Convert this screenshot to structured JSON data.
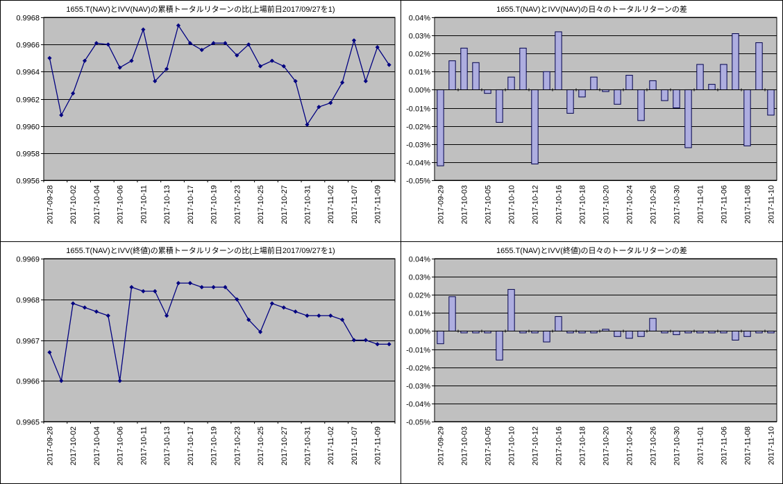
{
  "colors": {
    "plot_bg": "#C0C0C0",
    "grid": "#000000",
    "axis": "#000000",
    "line": "#000080",
    "bar_fill": "#AEAEE0",
    "bar_border": "#00004D",
    "chart_bg": "#FFFFFF"
  },
  "chart_data": [
    {
      "type": "line",
      "title": "1655.T(NAV)とIVV(NAV)の累積トータルリターンの比(上場前日2017/09/27を1)",
      "legend": "none",
      "grid": "horizontal",
      "marker": "diamond",
      "label_every": 2,
      "ylim": [
        0.9956,
        0.9968
      ],
      "ytick_step": 0.0002,
      "ytick_decimals": 4,
      "percent": false,
      "categories": [
        "2017-09-28",
        "2017-09-29",
        "2017-10-02",
        "2017-10-03",
        "2017-10-04",
        "2017-10-05",
        "2017-10-06",
        "2017-10-10",
        "2017-10-11",
        "2017-10-12",
        "2017-10-13",
        "2017-10-16",
        "2017-10-17",
        "2017-10-18",
        "2017-10-19",
        "2017-10-20",
        "2017-10-23",
        "2017-10-24",
        "2017-10-25",
        "2017-10-26",
        "2017-10-27",
        "2017-10-30",
        "2017-10-31",
        "2017-11-01",
        "2017-11-02",
        "2017-11-06",
        "2017-11-07",
        "2017-11-08",
        "2017-11-09",
        "2017-11-10"
      ],
      "values": [
        0.9965,
        0.99608,
        0.99624,
        0.99648,
        0.99661,
        0.9966,
        0.99643,
        0.99648,
        0.99671,
        0.99633,
        0.99642,
        0.99674,
        0.99661,
        0.99656,
        0.99661,
        0.99661,
        0.99652,
        0.9966,
        0.99644,
        0.99648,
        0.99644,
        0.99633,
        0.99601,
        0.99614,
        0.99617,
        0.99632,
        0.99663,
        0.99633,
        0.99658,
        0.99645
      ]
    },
    {
      "type": "bar",
      "title": "1655.T(NAV)とIVV(NAV)の日々のトータルリターンの差",
      "legend": "none",
      "grid": "horizontal",
      "label_every": 2,
      "ylim": [
        -0.05,
        0.04
      ],
      "ytick_step": 0.01,
      "ytick_decimals": 2,
      "percent": true,
      "categories": [
        "2017-09-29",
        "2017-10-02",
        "2017-10-03",
        "2017-10-04",
        "2017-10-05",
        "2017-10-06",
        "2017-10-10",
        "2017-10-11",
        "2017-10-12",
        "2017-10-13",
        "2017-10-16",
        "2017-10-17",
        "2017-10-18",
        "2017-10-19",
        "2017-10-20",
        "2017-10-23",
        "2017-10-24",
        "2017-10-25",
        "2017-10-26",
        "2017-10-27",
        "2017-10-30",
        "2017-10-31",
        "2017-11-01",
        "2017-11-02",
        "2017-11-06",
        "2017-11-07",
        "2017-11-08",
        "2017-11-09",
        "2017-11-10"
      ],
      "values": [
        -0.042,
        0.016,
        0.023,
        0.015,
        -0.002,
        -0.018,
        0.007,
        0.023,
        -0.041,
        0.01,
        0.032,
        -0.013,
        -0.004,
        0.007,
        -0.001,
        -0.008,
        0.008,
        -0.017,
        0.005,
        -0.006,
        -0.01,
        -0.032,
        0.014,
        0.003,
        0.014,
        0.031,
        -0.031,
        0.026,
        -0.014
      ]
    },
    {
      "type": "line",
      "title": "1655.T(NAV)とIVV(終値)の累積トータルリターンの比(上場前日2017/09/27を1)",
      "legend": "none",
      "grid": "horizontal",
      "marker": "diamond",
      "label_every": 2,
      "ylim": [
        0.9965,
        0.9969
      ],
      "ytick_step": 0.0001,
      "ytick_decimals": 4,
      "percent": false,
      "categories": [
        "2017-09-28",
        "2017-09-29",
        "2017-10-02",
        "2017-10-03",
        "2017-10-04",
        "2017-10-05",
        "2017-10-06",
        "2017-10-10",
        "2017-10-11",
        "2017-10-12",
        "2017-10-13",
        "2017-10-16",
        "2017-10-17",
        "2017-10-18",
        "2017-10-19",
        "2017-10-20",
        "2017-10-23",
        "2017-10-24",
        "2017-10-25",
        "2017-10-26",
        "2017-10-27",
        "2017-10-30",
        "2017-10-31",
        "2017-11-01",
        "2017-11-02",
        "2017-11-06",
        "2017-11-07",
        "2017-11-08",
        "2017-11-09",
        "2017-11-10"
      ],
      "values": [
        0.99667,
        0.9966,
        0.99679,
        0.99678,
        0.99677,
        0.99676,
        0.9966,
        0.99683,
        0.99682,
        0.99682,
        0.99676,
        0.99684,
        0.99684,
        0.99683,
        0.99683,
        0.99683,
        0.9968,
        0.99675,
        0.99672,
        0.99679,
        0.99678,
        0.99677,
        0.99676,
        0.99676,
        0.99676,
        0.99675,
        0.9967,
        0.9967,
        0.99669,
        0.99669
      ]
    },
    {
      "type": "bar",
      "title": "1655.T(NAV)とIVV(終値)の日々のトータルリターンの差",
      "legend": "none",
      "grid": "horizontal",
      "label_every": 2,
      "ylim": [
        -0.05,
        0.04
      ],
      "ytick_step": 0.01,
      "ytick_decimals": 2,
      "percent": true,
      "categories": [
        "2017-09-29",
        "2017-10-02",
        "2017-10-03",
        "2017-10-04",
        "2017-10-05",
        "2017-10-06",
        "2017-10-10",
        "2017-10-11",
        "2017-10-12",
        "2017-10-13",
        "2017-10-16",
        "2017-10-17",
        "2017-10-18",
        "2017-10-19",
        "2017-10-20",
        "2017-10-23",
        "2017-10-24",
        "2017-10-25",
        "2017-10-26",
        "2017-10-27",
        "2017-10-30",
        "2017-10-31",
        "2017-11-01",
        "2017-11-02",
        "2017-11-06",
        "2017-11-07",
        "2017-11-08",
        "2017-11-09",
        "2017-11-10"
      ],
      "values": [
        -0.007,
        0.019,
        -0.001,
        -0.001,
        -0.001,
        -0.016,
        0.023,
        -0.001,
        -0.001,
        -0.006,
        0.008,
        -0.001,
        -0.001,
        -0.001,
        0.001,
        -0.003,
        -0.004,
        -0.003,
        0.007,
        -0.001,
        -0.002,
        -0.001,
        -0.001,
        -0.001,
        -0.001,
        -0.005,
        -0.003,
        -0.001,
        -0.001
      ]
    }
  ]
}
